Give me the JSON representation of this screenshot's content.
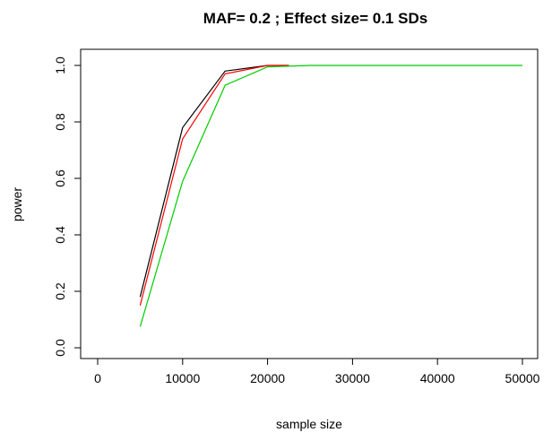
{
  "chart_data": {
    "type": "line",
    "title": "MAF= 0.2 ; Effect size= 0.1 SDs",
    "xlabel": "sample size",
    "ylabel": "power",
    "xlim": [
      0,
      50000
    ],
    "ylim": [
      0,
      1
    ],
    "x_ticks": [
      0,
      10000,
      20000,
      30000,
      40000,
      50000
    ],
    "x_tick_labels": [
      "0",
      "10000",
      "20000",
      "30000",
      "40000",
      "50000"
    ],
    "y_ticks": [
      0,
      0.2,
      0.4,
      0.6,
      0.8,
      1
    ],
    "y_tick_labels": [
      "0.0",
      "0.2",
      "0.4",
      "0.6",
      "0.8",
      "1.0"
    ],
    "grid": false,
    "legend": "none",
    "series": [
      {
        "color": "#000000",
        "x": [
          5000,
          10000,
          15000,
          20000,
          22500
        ],
        "y": [
          0.18,
          0.78,
          0.98,
          1.0,
          1.0
        ]
      },
      {
        "color": "#ff0000",
        "x": [
          5000,
          10000,
          15000,
          20000,
          22500
        ],
        "y": [
          0.15,
          0.74,
          0.97,
          1.0,
          1.0
        ]
      },
      {
        "color": "#00cc00",
        "x": [
          5000,
          10000,
          15000,
          20000,
          25000,
          30000,
          35000,
          40000,
          45000,
          50000
        ],
        "y": [
          0.075,
          0.59,
          0.93,
          0.995,
          1.0,
          1.0,
          1.0,
          1.0,
          1.0,
          1.0
        ]
      }
    ]
  }
}
